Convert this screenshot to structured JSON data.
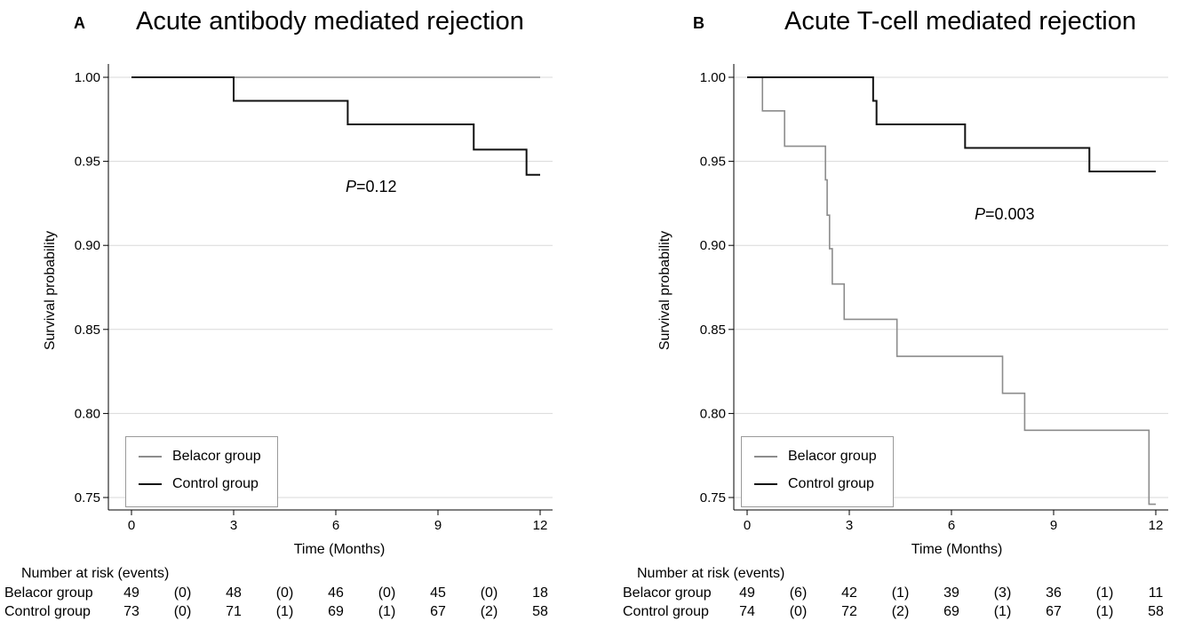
{
  "colors": {
    "belacor": "#8c8c8c",
    "control": "#111111",
    "grid": "#d9d9d9"
  },
  "chart_data": [
    {
      "panel": "A",
      "type": "line",
      "title": "Acute antibody mediated rejection",
      "xlabel": "Time (Months)",
      "ylabel": "Survival probability",
      "xlim": [
        0,
        12
      ],
      "ylim": [
        0.75,
        1.0
      ],
      "xticks": [
        "0",
        "3",
        "6",
        "9",
        "12"
      ],
      "yticks": [
        "0.75",
        "0.80",
        "0.85",
        "0.90",
        "0.95",
        "1.00"
      ],
      "grid": true,
      "legend_position": "bottom-left",
      "annotation": {
        "label": "P",
        "value": "=0.12"
      },
      "series": [
        {
          "name": "Belacor group",
          "color": "#8c8c8c",
          "step": true,
          "x": [
            0,
            12
          ],
          "y": [
            1.0,
            1.0
          ]
        },
        {
          "name": "Control group",
          "color": "#111111",
          "step": true,
          "x": [
            0,
            3.0,
            6.35,
            10.05,
            11.6,
            12
          ],
          "y": [
            1.0,
            0.986,
            0.972,
            0.957,
            0.942,
            0.942
          ]
        }
      ],
      "risk_table": {
        "title": "Number at risk (events)",
        "rows": [
          {
            "label": "Belacor group",
            "cells": [
              "49",
              "(0)",
              "48",
              "(0)",
              "46",
              "(0)",
              "45",
              "(0)",
              "18"
            ]
          },
          {
            "label": "Control group",
            "cells": [
              "73",
              "(0)",
              "71",
              "(1)",
              "69",
              "(1)",
              "67",
              "(2)",
              "58"
            ]
          }
        ]
      }
    },
    {
      "panel": "B",
      "type": "line",
      "title": "Acute T-cell mediated rejection",
      "xlabel": "Time (Months)",
      "ylabel": "Survival probability",
      "xlim": [
        0,
        12
      ],
      "ylim": [
        0.75,
        1.0
      ],
      "xticks": [
        "0",
        "3",
        "6",
        "9",
        "12"
      ],
      "yticks": [
        "0.75",
        "0.80",
        "0.85",
        "0.90",
        "0.95",
        "1.00"
      ],
      "grid": true,
      "legend_position": "bottom-left",
      "annotation": {
        "label": "P",
        "value": "=0.003"
      },
      "series": [
        {
          "name": "Belacor group",
          "color": "#8c8c8c",
          "step": true,
          "x": [
            0,
            0.45,
            1.1,
            2.3,
            2.35,
            2.42,
            2.5,
            2.85,
            4.4,
            6.4,
            7.5,
            8.15,
            11.8,
            12
          ],
          "y": [
            1.0,
            0.98,
            0.959,
            0.939,
            0.918,
            0.898,
            0.877,
            0.856,
            0.834,
            0.834,
            0.812,
            0.79,
            0.746,
            0.746
          ]
        }
      ]
    }
  ]
}
